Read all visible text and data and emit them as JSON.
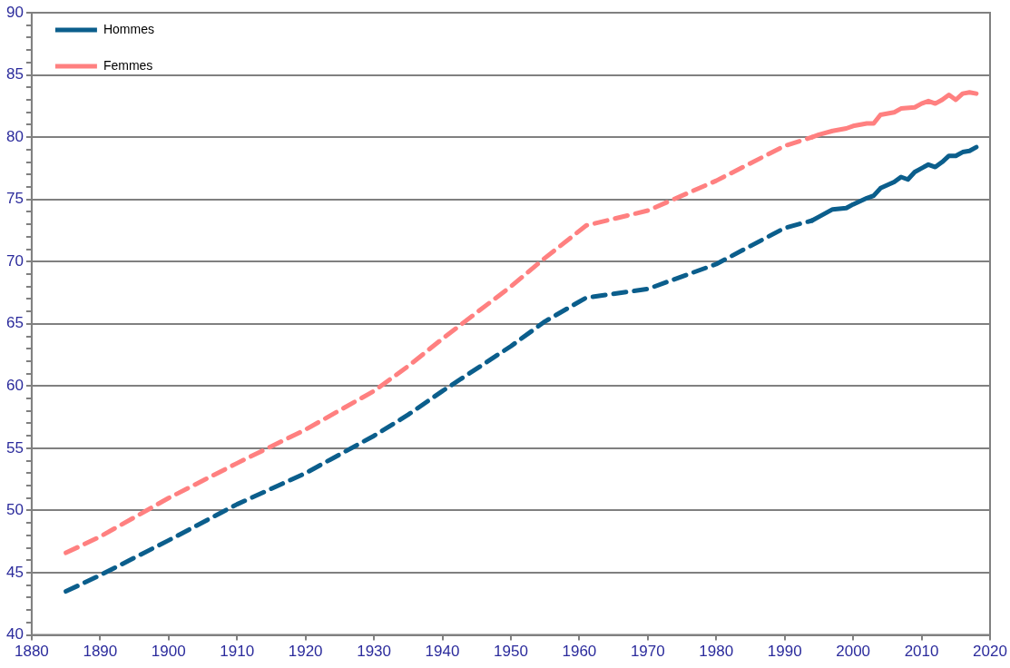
{
  "chart_data": {
    "type": "line",
    "xlim": [
      1880,
      2020
    ],
    "xticks": [
      1880,
      1890,
      1900,
      1910,
      1920,
      1930,
      1940,
      1950,
      1960,
      1970,
      1980,
      1990,
      2000,
      2010,
      2020
    ],
    "ylim": [
      40,
      90
    ],
    "yticks": [
      40,
      {
        "value": 41,
        "label": null
      },
      {
        "value": 42,
        "label": null
      },
      {
        "value": 43,
        "label": null
      },
      {
        "value": 44,
        "label": null
      },
      45,
      {
        "value": 46,
        "label": null
      },
      {
        "value": 47,
        "label": null
      },
      {
        "value": 48,
        "label": null
      },
      {
        "value": 49,
        "label": null
      },
      50,
      {
        "value": 51,
        "label": null
      },
      {
        "value": 52,
        "label": null
      },
      {
        "value": 53,
        "label": null
      },
      {
        "value": 54,
        "label": null
      },
      55,
      {
        "value": 56,
        "label": null
      },
      {
        "value": 57,
        "label": null
      },
      {
        "value": 58,
        "label": null
      },
      {
        "value": 59,
        "label": null
      },
      60,
      {
        "value": 61,
        "label": null
      },
      {
        "value": 62,
        "label": null
      },
      {
        "value": 63,
        "label": null
      },
      {
        "value": 64,
        "label": null
      },
      65,
      {
        "value": 66,
        "label": null
      },
      {
        "value": 67,
        "label": null
      },
      {
        "value": 68,
        "label": null
      },
      {
        "value": 69,
        "label": null
      },
      70,
      {
        "value": 71,
        "label": null
      },
      {
        "value": 72,
        "label": null
      },
      {
        "value": 73,
        "label": null
      },
      {
        "value": 74,
        "label": null
      },
      75,
      {
        "value": 76,
        "label": null
      },
      {
        "value": 77,
        "label": null
      },
      {
        "value": 78,
        "label": null
      },
      {
        "value": 79,
        "label": null
      },
      80,
      {
        "value": 81,
        "label": null
      },
      {
        "value": 82,
        "label": null
      },
      {
        "value": 83,
        "label": null
      },
      {
        "value": 84,
        "label": null
      },
      85,
      {
        "value": 86,
        "label": null
      },
      {
        "value": 87,
        "label": null
      },
      {
        "value": 88,
        "label": null
      },
      {
        "value": 89,
        "label": null
      },
      90
    ],
    "grid": "y",
    "legend": "top left",
    "marker": "none",
    "series": [
      {
        "color": "#0b5e8c",
        "line_style": "dashed",
        "x": [
          1885,
          1890,
          1900,
          1910,
          1920,
          1930,
          1935,
          1940,
          1950,
          1955,
          1961,
          1970,
          1980,
          1990,
          1994
        ],
        "values": [
          43.5,
          44.8,
          47.6,
          50.5,
          53,
          56,
          57.7,
          59.6,
          63.2,
          65.2,
          67.1,
          67.8,
          69.8,
          72.7,
          73.3
        ]
      },
      {
        "color": "#ff8080",
        "line_style": "dashed",
        "x": [
          1885,
          1890,
          1900,
          1910,
          1920,
          1930,
          1935,
          1940,
          1950,
          1955,
          1961,
          1970,
          1980,
          1990,
          1994
        ],
        "values": [
          46.6,
          47.9,
          51,
          53.8,
          56.5,
          59.6,
          61.6,
          63.8,
          68,
          70.3,
          72.9,
          74.1,
          76.5,
          79.3,
          80
        ]
      },
      {
        "name": "Hommes",
        "color": "#0b5e8c",
        "line_style": "solid",
        "x": [
          1994,
          1995,
          1997,
          1999,
          2000,
          2002,
          2003,
          2004,
          2006,
          2007,
          2008,
          2009,
          2010,
          2011,
          2012,
          2013,
          2014,
          2015,
          2016,
          2017,
          2018
        ],
        "values": [
          73.3,
          73.6,
          74.2,
          74.3,
          74.6,
          75.1,
          75.3,
          75.9,
          76.4,
          76.8,
          76.6,
          77.2,
          77.5,
          77.8,
          77.6,
          78,
          78.5,
          78.5,
          78.8,
          78.9,
          79.2
        ]
      },
      {
        "name": "Femmes",
        "color": "#ff8080",
        "line_style": "solid",
        "x": [
          1994,
          1995,
          1997,
          1999,
          2000,
          2002,
          2003,
          2004,
          2006,
          2007,
          2009,
          2010,
          2011,
          2012,
          2013,
          2014,
          2015,
          2016,
          2017,
          2018
        ],
        "values": [
          80,
          80.2,
          80.5,
          80.7,
          80.9,
          81.1,
          81.1,
          81.8,
          82,
          82.3,
          82.4,
          82.7,
          82.9,
          82.7,
          83,
          83.4,
          83,
          83.5,
          83.6,
          83.5
        ]
      }
    ]
  }
}
